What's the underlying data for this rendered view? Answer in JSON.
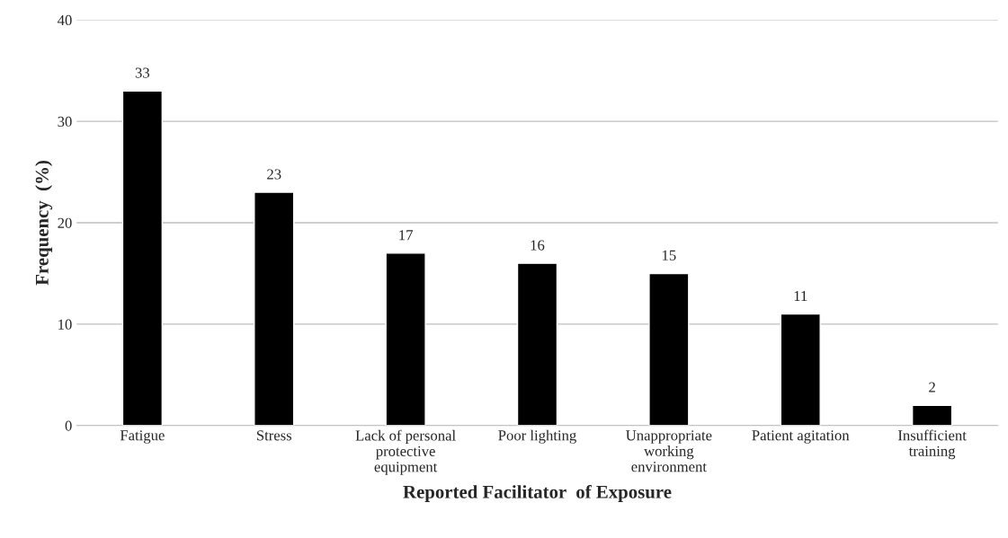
{
  "chart_data": {
    "type": "bar",
    "categories": [
      "Fatigue",
      "Stress",
      "Lack of personal\nprotective\nequipment",
      "Poor lighting",
      "Unappropriate\nworking\nenvironment",
      "Patient agitation",
      "Insufficient\ntraining"
    ],
    "values": [
      33,
      23,
      17,
      16,
      15,
      11,
      2
    ],
    "color": "#000000",
    "xlabel": "Reported Facilitator  of Exposure",
    "ylabel": "Frequency  (%)",
    "ylim": [
      0,
      40
    ],
    "yticks": [
      0,
      10,
      20,
      30,
      40
    ],
    "grid": "y",
    "data_labels": true
  }
}
